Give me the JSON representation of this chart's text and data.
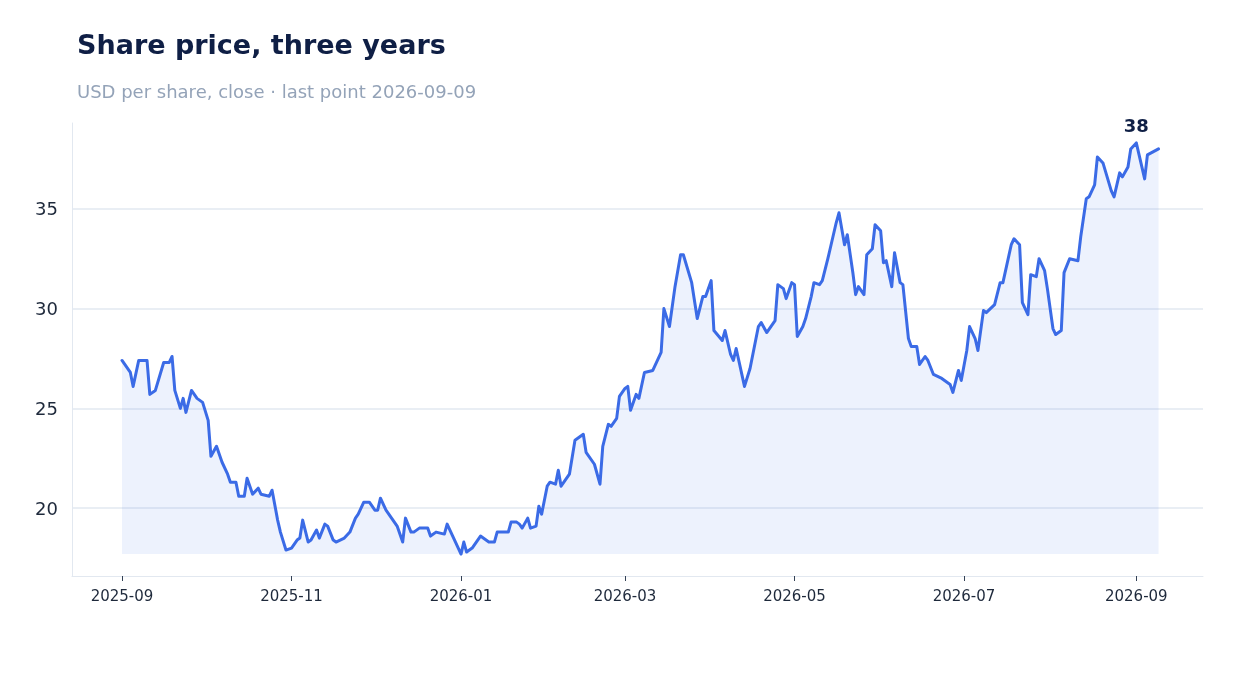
{
  "chart_data": {
    "type": "area",
    "title": "Share price, three years",
    "subtitle": "USD per share, close · last point 2026-09-09",
    "x": [
      "2025-09-01",
      "2025-09-04",
      "2025-09-05",
      "2025-09-07",
      "2025-09-10",
      "2025-09-11",
      "2025-09-13",
      "2025-09-16",
      "2025-09-18",
      "2025-09-19",
      "2025-09-20",
      "2025-09-22",
      "2025-09-23",
      "2025-09-24",
      "2025-09-26",
      "2025-09-28",
      "2025-09-30",
      "2025-10-02",
      "2025-10-03",
      "2025-10-05",
      "2025-10-07",
      "2025-10-09",
      "2025-10-10",
      "2025-10-12",
      "2025-10-13",
      "2025-10-15",
      "2025-10-16",
      "2025-10-18",
      "2025-10-20",
      "2025-10-21",
      "2025-10-24",
      "2025-10-25",
      "2025-10-27",
      "2025-10-28",
      "2025-10-30",
      "2025-11-01",
      "2025-11-03",
      "2025-11-04",
      "2025-11-05",
      "2025-11-07",
      "2025-11-08",
      "2025-11-10",
      "2025-11-11",
      "2025-11-13",
      "2025-11-14",
      "2025-11-16",
      "2025-11-17",
      "2025-11-20",
      "2025-11-22",
      "2025-11-24",
      "2025-11-25",
      "2025-11-27",
      "2025-11-29",
      "2025-12-01",
      "2025-12-02",
      "2025-12-03",
      "2025-12-05",
      "2025-12-07",
      "2025-12-09",
      "2025-12-11",
      "2025-12-12",
      "2025-12-14",
      "2025-12-15",
      "2025-12-17",
      "2025-12-20",
      "2025-12-21",
      "2025-12-23",
      "2025-12-26",
      "2025-12-27",
      "2025-12-29",
      "2025-12-30",
      "2026-01-01",
      "2026-01-02",
      "2026-01-03",
      "2026-01-05",
      "2026-01-08",
      "2026-01-11",
      "2026-01-13",
      "2026-01-14",
      "2026-01-18",
      "2026-01-19",
      "2026-01-21",
      "2026-01-22",
      "2026-01-23",
      "2026-01-25",
      "2026-01-26",
      "2026-01-28",
      "2026-01-29",
      "2026-01-30",
      "2026-02-01",
      "2026-02-02",
      "2026-02-04",
      "2026-02-05",
      "2026-02-06",
      "2026-02-09",
      "2026-02-11",
      "2026-02-12",
      "2026-02-14",
      "2026-02-15",
      "2026-02-18",
      "2026-02-20",
      "2026-02-21",
      "2026-02-23",
      "2026-02-24",
      "2026-02-26",
      "2026-02-27",
      "2026-03-01",
      "2026-03-02",
      "2026-03-03",
      "2026-03-05",
      "2026-03-06",
      "2026-03-08",
      "2026-03-11",
      "2026-03-14",
      "2026-03-15",
      "2026-03-17",
      "2026-03-19",
      "2026-03-21",
      "2026-03-22",
      "2026-03-25",
      "2026-03-27",
      "2026-03-29",
      "2026-03-30",
      "2026-04-01",
      "2026-04-02",
      "2026-04-05",
      "2026-04-06",
      "2026-04-08",
      "2026-04-09",
      "2026-04-10",
      "2026-04-13",
      "2026-04-15",
      "2026-04-18",
      "2026-04-19",
      "2026-04-21",
      "2026-04-24",
      "2026-04-25",
      "2026-04-27",
      "2026-04-28",
      "2026-04-30",
      "2026-05-01",
      "2026-05-02",
      "2026-05-04",
      "2026-05-05",
      "2026-05-07",
      "2026-05-08",
      "2026-05-10",
      "2026-05-11",
      "2026-05-13",
      "2026-05-14",
      "2026-05-16",
      "2026-05-17",
      "2026-05-19",
      "2026-05-20",
      "2026-05-22",
      "2026-05-23",
      "2026-05-24",
      "2026-05-26",
      "2026-05-27",
      "2026-05-29",
      "2026-05-30",
      "2026-06-01",
      "2026-06-02",
      "2026-06-03",
      "2026-06-05",
      "2026-06-06",
      "2026-06-08",
      "2026-06-09",
      "2026-06-11",
      "2026-06-12",
      "2026-06-14",
      "2026-06-15",
      "2026-06-17",
      "2026-06-18",
      "2026-06-20",
      "2026-06-23",
      "2026-06-26",
      "2026-06-27",
      "2026-06-29",
      "2026-06-30",
      "2026-07-02",
      "2026-07-03",
      "2026-07-05",
      "2026-07-06",
      "2026-07-08",
      "2026-07-09",
      "2026-07-12",
      "2026-07-14",
      "2026-07-15",
      "2026-07-18",
      "2026-07-19",
      "2026-07-21",
      "2026-07-22",
      "2026-07-24",
      "2026-07-25",
      "2026-07-27",
      "2026-07-28",
      "2026-07-30",
      "2026-07-31",
      "2026-08-02",
      "2026-08-03",
      "2026-08-05",
      "2026-08-06",
      "2026-08-08",
      "2026-08-11",
      "2026-08-12",
      "2026-08-14",
      "2026-08-15",
      "2026-08-17",
      "2026-08-18",
      "2026-08-20",
      "2026-08-23",
      "2026-08-24",
      "2026-08-26",
      "2026-08-27",
      "2026-08-29",
      "2026-08-30",
      "2026-09-01",
      "2026-09-02",
      "2026-09-04",
      "2026-09-05",
      "2026-09-09"
    ],
    "series": [
      {
        "color": "#3b6be6",
        "values": [
          27.4,
          26.8,
          26.1,
          27.4,
          27.4,
          25.7,
          25.9,
          27.3,
          27.3,
          27.6,
          25.9,
          25.0,
          25.5,
          24.8,
          25.9,
          25.5,
          25.3,
          24.4,
          22.6,
          23.1,
          22.3,
          21.7,
          21.3,
          21.3,
          20.6,
          20.6,
          21.5,
          20.7,
          21.0,
          20.7,
          20.6,
          20.9,
          19.4,
          18.8,
          17.9,
          18.0,
          18.4,
          18.5,
          19.4,
          18.3,
          18.4,
          18.9,
          18.5,
          19.2,
          19.1,
          18.4,
          18.3,
          18.5,
          18.8,
          19.5,
          19.7,
          20.3,
          20.3,
          19.9,
          19.9,
          20.5,
          19.9,
          19.5,
          19.1,
          18.3,
          19.5,
          18.8,
          18.8,
          19.0,
          19.0,
          18.6,
          18.8,
          18.7,
          19.2,
          18.6,
          18.3,
          17.7,
          18.3,
          17.8,
          18.0,
          18.6,
          18.3,
          18.3,
          18.8,
          18.8,
          19.3,
          19.3,
          19.2,
          19.0,
          19.5,
          19.0,
          19.1,
          20.1,
          19.7,
          21.1,
          21.3,
          21.2,
          21.9,
          21.1,
          21.7,
          23.4,
          23.5,
          23.7,
          22.8,
          22.2,
          21.2,
          23.1,
          24.2,
          24.1,
          24.5,
          25.6,
          26.0,
          26.1,
          24.9,
          25.7,
          25.5,
          26.8,
          26.9,
          27.8,
          30.0,
          29.1,
          31.1,
          32.7,
          32.7,
          31.3,
          29.5,
          30.6,
          30.6,
          31.4,
          28.9,
          28.4,
          28.9,
          27.7,
          27.4,
          28.0,
          26.1,
          27.0,
          29.1,
          29.3,
          28.8,
          29.4,
          31.2,
          31.0,
          30.5,
          31.3,
          31.2,
          28.6,
          29.1,
          29.5,
          30.6,
          31.3,
          31.2,
          31.4,
          32.5,
          33.1,
          34.3,
          34.8,
          33.2,
          33.7,
          31.8,
          30.7,
          31.1,
          30.7,
          32.7,
          33.0,
          34.2,
          33.9,
          32.3,
          32.4,
          31.1,
          32.8,
          31.3,
          31.2,
          28.5,
          28.1,
          28.1,
          27.2,
          27.6,
          27.4,
          26.7,
          26.5,
          26.2,
          25.8,
          26.9,
          26.4,
          27.9,
          29.1,
          28.5,
          27.9,
          29.9,
          29.8,
          30.2,
          31.3,
          31.3,
          33.2,
          33.5,
          33.2,
          30.3,
          29.7,
          31.7,
          31.6,
          32.5,
          31.9,
          31.0,
          29.0,
          28.7,
          28.9,
          31.8,
          32.5,
          32.4,
          33.6,
          35.5,
          35.6,
          36.2,
          37.6,
          37.3,
          35.9,
          35.6,
          36.8,
          36.6,
          37.1,
          38.0,
          38.3,
          37.7,
          36.5,
          37.7,
          38.0
        ],
        "value_labels": [
          null,
          null,
          null,
          null,
          null,
          null,
          null,
          null,
          null,
          null,
          null,
          null,
          null,
          null,
          null,
          null,
          null,
          null,
          null,
          null,
          null,
          null,
          null,
          null,
          null,
          null,
          null,
          null,
          null,
          null,
          null,
          null,
          null,
          null,
          null,
          null,
          null,
          null,
          null,
          null,
          null,
          null,
          null,
          null,
          null,
          null,
          null,
          null,
          null,
          null,
          null,
          null,
          null,
          null,
          null,
          null,
          null,
          null,
          null,
          null,
          null,
          null,
          null,
          null,
          null,
          null,
          null,
          null,
          null,
          null,
          null,
          null,
          null,
          null,
          null,
          null,
          null,
          null,
          null,
          null,
          null,
          null,
          null,
          null,
          null,
          null,
          null,
          null,
          null,
          null,
          null,
          null,
          null,
          null,
          null,
          null,
          null,
          null,
          null,
          null,
          null,
          null,
          null,
          null,
          null,
          null,
          null,
          null,
          null,
          null,
          null,
          null,
          null,
          null,
          null,
          null,
          null,
          null,
          null,
          null,
          null,
          null,
          null,
          null,
          null,
          null,
          null,
          null,
          null,
          null,
          null,
          null,
          null,
          null,
          null,
          null,
          null,
          null,
          null,
          null,
          null,
          null,
          null,
          null,
          null,
          null,
          null,
          null,
          null,
          null,
          null,
          null,
          null,
          null,
          null,
          null,
          null,
          null,
          null,
          null,
          null,
          null,
          null,
          null,
          null,
          null,
          null,
          null,
          null,
          null,
          null,
          null,
          null,
          null,
          null,
          null,
          null,
          null,
          null,
          null,
          null,
          null,
          null,
          null,
          null,
          null,
          null,
          null,
          null,
          null,
          null,
          null,
          null,
          null,
          null,
          null,
          null,
          null,
          null,
          null,
          null,
          null,
          null,
          null,
          null,
          null,
          null,
          null,
          null,
          null,
          null,
          null,
          null,
          null,
          null,
          null,
          null,
          "38",
          null,
          null,
          null,
          null
        ]
      }
    ],
    "xlim": [
      "2025-08-14",
      "2026-09-25"
    ],
    "xticks": [
      {
        "value": "2025-09-01",
        "label": "2025-09"
      },
      {
        "value": "2025-11-01",
        "label": "2025-11"
      },
      {
        "value": "2026-01-01",
        "label": "2026-01"
      },
      {
        "value": "2026-03-01",
        "label": "2026-03"
      },
      {
        "value": "2026-05-01",
        "label": "2026-05"
      },
      {
        "value": "2026-07-01",
        "label": "2026-07"
      },
      {
        "value": "2026-09-01",
        "label": "2026-09"
      }
    ],
    "ylim": [
      16.6,
      39.3
    ],
    "yticks": [
      20,
      25,
      30,
      35
    ],
    "grid": "y",
    "marker": "none",
    "line_style": "solid"
  }
}
